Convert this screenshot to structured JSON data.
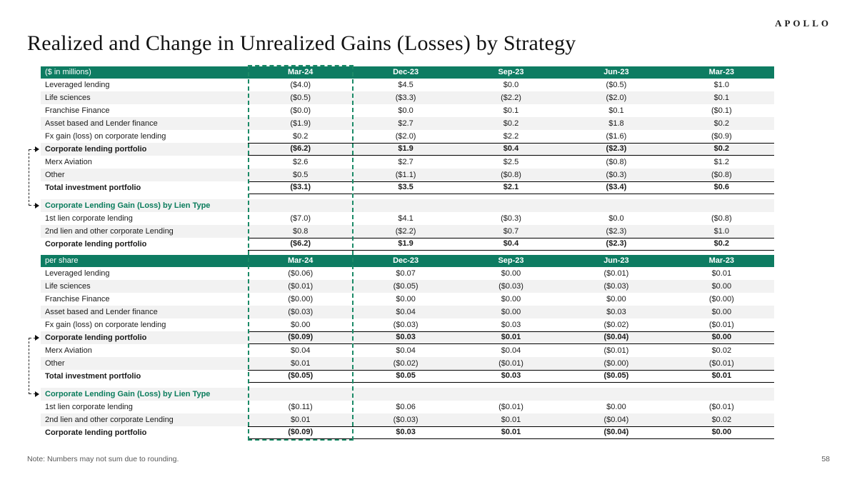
{
  "logo": "APOLLO",
  "title": "Realized and Change in Unrealized Gains (Losses) by Strategy",
  "note": "Note: Numbers may not sum due to rounding.",
  "page_number": "58",
  "highlighted_column": "Mar-24",
  "colors": {
    "header_green": "#0e7c62",
    "section_green": "#0a7c5c",
    "highlight_green": "#1b8a67",
    "stripe_gray": "#f2f2f2"
  },
  "columns": [
    "Mar-24",
    "Dec-23",
    "Sep-23",
    "Jun-23",
    "Mar-23"
  ],
  "tables": [
    {
      "id": "dollars-in-millions",
      "unit_label": "($ in millions)",
      "rows": [
        {
          "style": "data",
          "label": "Leveraged lending",
          "values": [
            "($4.0)",
            "$4.5",
            "$0.0",
            "($0.5)",
            "$1.0"
          ]
        },
        {
          "style": "data",
          "label": "Life sciences",
          "values": [
            "($0.5)",
            "($3.3)",
            "($2.2)",
            "($2.0)",
            "$0.1"
          ]
        },
        {
          "style": "data",
          "label": "Franchise Finance",
          "values": [
            "($0.0)",
            "$0.0",
            "$0.1",
            "$0.1",
            "($0.1)"
          ]
        },
        {
          "style": "data",
          "label": "Asset based and Lender finance",
          "values": [
            "($1.9)",
            "$2.7",
            "$0.2",
            "$1.8",
            "$0.2"
          ]
        },
        {
          "style": "data",
          "label": "Fx gain (loss) on corporate lending",
          "values": [
            "$0.2",
            "($2.0)",
            "$2.2",
            "($1.6)",
            "($0.9)"
          ]
        },
        {
          "style": "total",
          "label": "Corporate lending portfolio",
          "values": [
            "($6.2)",
            "$1.9",
            "$0.4",
            "($2.3)",
            "$0.2"
          ]
        },
        {
          "style": "data",
          "label": "Merx Aviation",
          "values": [
            "$2.6",
            "$2.7",
            "$2.5",
            "($0.8)",
            "$1.2"
          ]
        },
        {
          "style": "data",
          "label": "Other",
          "values": [
            "$0.5",
            "($1.1)",
            "($0.8)",
            "($0.3)",
            "($0.8)"
          ]
        },
        {
          "style": "total",
          "label": "Total investment portfolio",
          "values": [
            "($3.1)",
            "$3.5",
            "$2.1",
            "($3.4)",
            "$0.6"
          ]
        },
        {
          "style": "spacer",
          "label": "",
          "values": [
            "",
            "",
            "",
            "",
            ""
          ]
        },
        {
          "style": "section",
          "label": "Corporate Lending Gain (Loss) by Lien Type",
          "values": [
            "",
            "",
            "",
            "",
            ""
          ]
        },
        {
          "style": "data",
          "label": "1st lien corporate lending",
          "values": [
            "($7.0)",
            "$4.1",
            "($0.3)",
            "$0.0",
            "($0.8)"
          ]
        },
        {
          "style": "data",
          "label": "2nd lien and other corporate Lending",
          "values": [
            "$0.8",
            "($2.2)",
            "$0.7",
            "($2.3)",
            "$1.0"
          ]
        },
        {
          "style": "total",
          "label": "Corporate lending portfolio",
          "values": [
            "($6.2)",
            "$1.9",
            "$0.4",
            "($2.3)",
            "$0.2"
          ]
        }
      ]
    },
    {
      "id": "per-share",
      "unit_label": "per share",
      "rows": [
        {
          "style": "data",
          "label": "Leveraged lending",
          "values": [
            "($0.06)",
            "$0.07",
            "$0.00",
            "($0.01)",
            "$0.01"
          ]
        },
        {
          "style": "data",
          "label": "Life sciences",
          "values": [
            "($0.01)",
            "($0.05)",
            "($0.03)",
            "($0.03)",
            "$0.00"
          ]
        },
        {
          "style": "data",
          "label": "Franchise Finance",
          "values": [
            "($0.00)",
            "$0.00",
            "$0.00",
            "$0.00",
            "($0.00)"
          ]
        },
        {
          "style": "data",
          "label": "Asset based and Lender finance",
          "values": [
            "($0.03)",
            "$0.04",
            "$0.00",
            "$0.03",
            "$0.00"
          ]
        },
        {
          "style": "data",
          "label": "Fx gain (loss) on corporate lending",
          "values": [
            "$0.00",
            "($0.03)",
            "$0.03",
            "($0.02)",
            "($0.01)"
          ]
        },
        {
          "style": "total",
          "label": "Corporate lending portfolio",
          "values": [
            "($0.09)",
            "$0.03",
            "$0.01",
            "($0.04)",
            "$0.00"
          ]
        },
        {
          "style": "data",
          "label": "Merx Aviation",
          "values": [
            "$0.04",
            "$0.04",
            "$0.04",
            "($0.01)",
            "$0.02"
          ]
        },
        {
          "style": "data",
          "label": "Other",
          "values": [
            "$0.01",
            "($0.02)",
            "($0.01)",
            "($0.00)",
            "($0.01)"
          ]
        },
        {
          "style": "total",
          "label": "Total investment portfolio",
          "values": [
            "($0.05)",
            "$0.05",
            "$0.03",
            "($0.05)",
            "$0.01"
          ]
        },
        {
          "style": "spacer",
          "label": "",
          "values": [
            "",
            "",
            "",
            "",
            ""
          ]
        },
        {
          "style": "section",
          "label": "Corporate Lending Gain (Loss) by Lien Type",
          "values": [
            "",
            "",
            "",
            "",
            ""
          ]
        },
        {
          "style": "data",
          "label": "1st lien corporate lending",
          "values": [
            "($0.11)",
            "$0.06",
            "($0.01)",
            "$0.00",
            "($0.01)"
          ]
        },
        {
          "style": "data",
          "label": "2nd lien and other corporate Lending",
          "values": [
            "$0.01",
            "($0.03)",
            "$0.01",
            "($0.04)",
            "$0.02"
          ]
        },
        {
          "style": "total",
          "label": "Corporate lending portfolio",
          "values": [
            "($0.09)",
            "$0.03",
            "$0.01",
            "($0.04)",
            "$0.00"
          ]
        }
      ]
    }
  ]
}
